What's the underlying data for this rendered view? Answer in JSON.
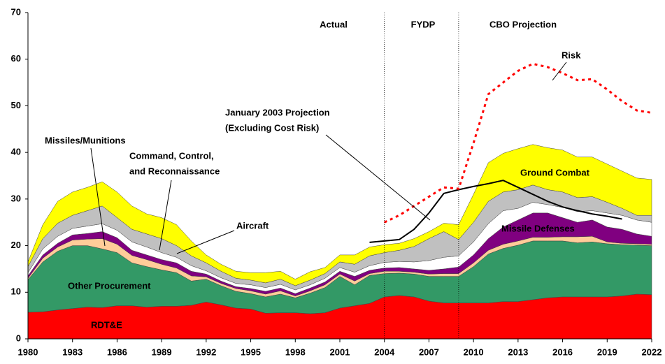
{
  "chart_data": {
    "type": "stacked_area",
    "x": [
      1980,
      1981,
      1982,
      1983,
      1984,
      1985,
      1986,
      1987,
      1988,
      1989,
      1990,
      1991,
      1992,
      1993,
      1994,
      1995,
      1996,
      1997,
      1998,
      1999,
      2000,
      2001,
      2002,
      2003,
      2004,
      2005,
      2006,
      2007,
      2008,
      2009,
      2010,
      2011,
      2012,
      2013,
      2014,
      2015,
      2016,
      2017,
      2018,
      2019,
      2020,
      2021,
      2022
    ],
    "xlim": [
      1980,
      2022
    ],
    "xticks": [
      1980,
      1983,
      1986,
      1989,
      1992,
      1995,
      1998,
      2001,
      2004,
      2007,
      2010,
      2013,
      2016,
      2019,
      2022
    ],
    "ylim": [
      0,
      70
    ],
    "yticks": [
      0,
      10,
      20,
      30,
      40,
      50,
      60,
      70
    ],
    "grid": false,
    "periods": [
      "Actual",
      "FYDP",
      "CBO Projection"
    ],
    "dividers": [
      2004,
      2009
    ],
    "series": [
      {
        "name": "RDT&E",
        "color": "#ff0000",
        "values": [
          5.7,
          5.8,
          6.2,
          6.5,
          6.8,
          6.7,
          7.1,
          7.1,
          6.8,
          7.0,
          7.0,
          7.2,
          7.9,
          7.3,
          6.6,
          6.4,
          5.5,
          5.6,
          5.6,
          5.4,
          5.6,
          6.6,
          7.1,
          7.6,
          9.0,
          9.3,
          9.0,
          8.1,
          7.7,
          7.7,
          7.7,
          7.7,
          8.0,
          8.0,
          8.4,
          8.8,
          9.0,
          9.0,
          9.0,
          9.0,
          9.2,
          9.6,
          9.5
        ]
      },
      {
        "name": "Other Procurement",
        "color": "#339966",
        "values": [
          7.0,
          10.7,
          12.6,
          13.5,
          13.2,
          12.6,
          11.4,
          9.2,
          8.7,
          7.8,
          7.2,
          5.2,
          4.9,
          4.1,
          3.6,
          3.3,
          3.5,
          4.0,
          3.2,
          4.4,
          5.4,
          6.8,
          4.5,
          6.0,
          5.0,
          4.8,
          4.9,
          5.3,
          5.7,
          5.7,
          7.8,
          10.5,
          11.4,
          12.1,
          12.6,
          12.2,
          12.0,
          11.6,
          11.8,
          11.4,
          11.0,
          10.5,
          10.5
        ]
      },
      {
        "name": "Missiles/Munitions",
        "color": "#ffcc99",
        "values": [
          0.3,
          0.8,
          0.9,
          1.2,
          1.4,
          2.2,
          1.8,
          1.6,
          1.5,
          1.2,
          1.0,
          1.1,
          0.5,
          0.5,
          0.6,
          0.6,
          0.6,
          0.7,
          0.4,
          0.5,
          0.6,
          0.5,
          0.8,
          0.4,
          0.5,
          0.4,
          0.4,
          0.5,
          0.6,
          0.6,
          0.8,
          0.8,
          0.9,
          0.9,
          0.8,
          0.8,
          0.9,
          1.3,
          1.2,
          0.4,
          0.3,
          0.3,
          0.3
        ]
      },
      {
        "name": "Missile Defenses",
        "color": "#800080",
        "values": [
          0.5,
          0.7,
          0.8,
          1.1,
          1.2,
          1.5,
          1.4,
          1.1,
          1.0,
          1.0,
          1.1,
          1.0,
          0.6,
          0.5,
          0.4,
          0.5,
          0.6,
          0.6,
          0.5,
          0.6,
          0.6,
          0.6,
          1.0,
          0.7,
          0.7,
          0.8,
          0.7,
          0.8,
          1.0,
          1.4,
          1.7,
          2.5,
          3.7,
          4.5,
          5.2,
          5.2,
          4.1,
          3.1,
          3.5,
          3.2,
          3.0,
          2.1,
          1.7
        ]
      },
      {
        "name": [
          "Command, Control,",
          "and Reconnaissance"
        ],
        "color": "#ffffff",
        "values": [
          0.7,
          1.3,
          1.5,
          1.4,
          1.6,
          1.7,
          1.6,
          1.8,
          1.7,
          1.5,
          1.2,
          1.2,
          0.7,
          0.7,
          0.7,
          0.8,
          0.8,
          0.8,
          0.8,
          0.7,
          0.8,
          0.8,
          0.9,
          1.0,
          1.2,
          1.3,
          1.5,
          2.1,
          2.5,
          2.4,
          2.8,
          3.2,
          3.5,
          2.5,
          2.3,
          1.8,
          2.2,
          2.3,
          2.0,
          3.0,
          3.0,
          3.0,
          3.0
        ]
      },
      {
        "name": "Aircraft",
        "color": "#c0c0c0",
        "values": [
          1.3,
          2.2,
          2.8,
          2.8,
          3.3,
          3.8,
          2.7,
          2.7,
          2.8,
          3.0,
          2.5,
          2.1,
          1.7,
          1.4,
          1.1,
          1.0,
          1.0,
          1.1,
          0.9,
          1.0,
          1.0,
          1.2,
          1.7,
          2.1,
          2.1,
          2.4,
          3.3,
          4.7,
          5.5,
          3.5,
          4.2,
          4.8,
          4.0,
          4.0,
          3.7,
          3.2,
          3.3,
          3.0,
          3.0,
          2.3,
          1.5,
          1.0,
          1.5
        ]
      },
      {
        "name": "Ground Combat",
        "color": "#ffff00",
        "values": [
          1.0,
          3.0,
          4.7,
          5.0,
          5.0,
          5.2,
          5.5,
          5.0,
          4.3,
          4.5,
          4.5,
          3.2,
          1.7,
          1.5,
          1.5,
          1.6,
          2.2,
          1.7,
          1.4,
          1.8,
          1.3,
          1.5,
          2.0,
          1.9,
          1.7,
          1.5,
          1.7,
          1.5,
          1.8,
          3.2,
          6.0,
          8.3,
          8.3,
          8.8,
          8.7,
          9.0,
          9.0,
          8.7,
          8.5,
          8.2,
          8.0,
          8.0,
          7.7
        ]
      }
    ],
    "lines": [
      {
        "name": [
          "January 2003 Projection",
          "(Excluding Cost Risk)"
        ],
        "color": "#000000",
        "dash": false,
        "values": [
          null,
          null,
          null,
          null,
          null,
          null,
          null,
          null,
          null,
          null,
          null,
          null,
          null,
          null,
          null,
          null,
          null,
          null,
          null,
          null,
          null,
          null,
          null,
          20.7,
          21.0,
          21.3,
          23.5,
          27.0,
          31.2,
          32.0,
          32.7,
          33.3,
          34.0,
          32.5,
          31.0,
          29.5,
          28.3,
          27.5,
          26.8,
          26.3,
          25.7,
          null,
          null
        ]
      },
      {
        "name": "Risk",
        "color": "#ff0000",
        "dash": true,
        "values": [
          null,
          null,
          null,
          null,
          null,
          null,
          null,
          null,
          null,
          null,
          null,
          null,
          null,
          null,
          null,
          null,
          null,
          null,
          null,
          null,
          null,
          null,
          null,
          null,
          25.0,
          26.5,
          28.5,
          30.5,
          32.5,
          32.2,
          42.0,
          52.5,
          55.0,
          57.5,
          59.0,
          58.3,
          57.0,
          55.5,
          55.7,
          53.5,
          51.0,
          49.0,
          48.5
        ]
      }
    ]
  }
}
